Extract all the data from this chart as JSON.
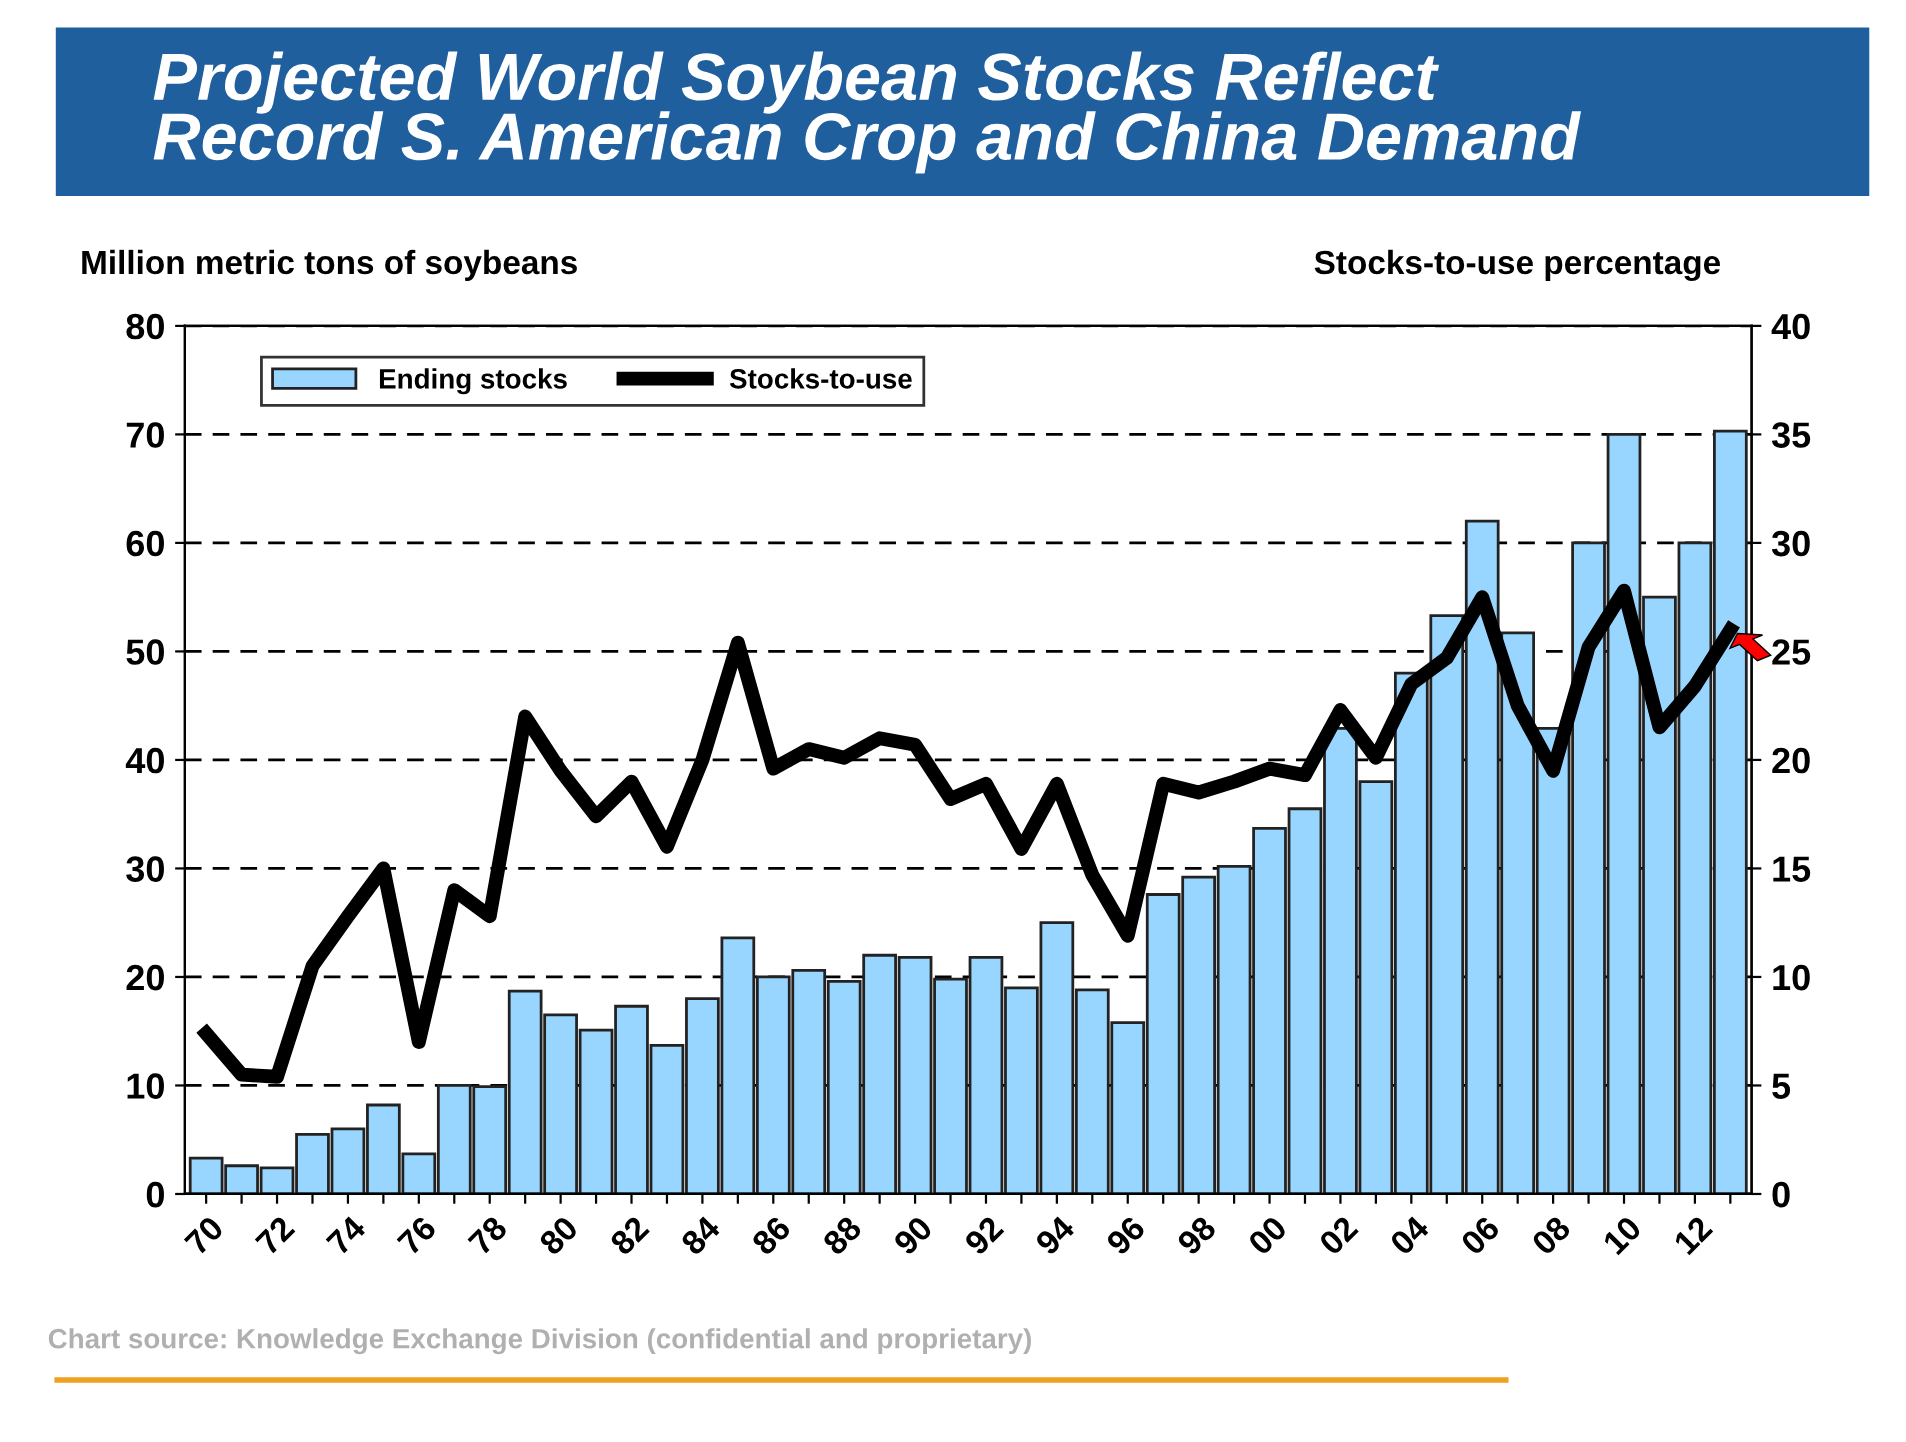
{
  "chart_data": {
    "type": "bar",
    "title": "Projected World Soybean Stocks Reflect\nRecord S. American Crop and China Demand",
    "ylabel": "Million metric tons of soybeans",
    "y2label": "Stocks-to-use percentage",
    "categories": [
      "70",
      null,
      "72",
      null,
      "74",
      null,
      "76",
      null,
      "78",
      null,
      "80",
      null,
      "82",
      null,
      "84",
      null,
      "86",
      null,
      "88",
      null,
      "90",
      null,
      "92",
      null,
      "94",
      null,
      "96",
      null,
      "98",
      null,
      "00",
      null,
      "02",
      null,
      "04",
      null,
      "06",
      null,
      "08",
      null,
      "10",
      null,
      "12",
      null
    ],
    "series": [
      {
        "name": "Ending stocks",
        "color": "#99d6ff",
        "values": [
          3.3,
          2.6,
          2.4,
          5.5,
          6,
          8.2,
          3.7,
          10,
          9.9,
          18.7,
          16.5,
          15.1,
          17.3,
          13.7,
          18,
          23.6,
          20,
          20.6,
          19.6,
          22,
          21.8,
          19.8,
          21.8,
          19,
          25,
          18.8,
          15.8,
          27.6,
          29.2,
          30.2,
          33.7,
          35.5,
          42.9,
          38,
          48,
          53.3,
          62,
          51.7,
          42.9,
          60,
          70,
          55,
          60,
          70.3
        ]
      },
      {
        "name": "Stocks-to-use",
        "type": "line",
        "axis": "y2",
        "color": "#000000",
        "values": [
          7.4,
          5.5,
          5.4,
          10.5,
          12.8,
          15,
          7,
          14,
          12.8,
          22,
          19.5,
          17.4,
          19,
          16,
          20,
          25.4,
          19.6,
          20.5,
          20.1,
          21,
          20.7,
          18.2,
          18.9,
          15.9,
          18.9,
          14.7,
          11.9,
          18.9,
          18.5,
          19,
          19.6,
          19.3,
          22.3,
          20.1,
          23.5,
          24.7,
          27.5,
          22.5,
          19.5,
          25.2,
          27.8,
          21.5,
          23.4,
          26
        ]
      }
    ],
    "ylim": [
      0,
      80
    ],
    "yticks": [
      0,
      10,
      20,
      30,
      40,
      50,
      60,
      70,
      80
    ],
    "y2lim": [
      0,
      40
    ],
    "y2ticks": [
      0,
      5,
      10,
      15,
      20,
      25,
      30,
      35,
      40
    ],
    "grid": "y",
    "legend": "top left",
    "line_style": "solid",
    "marker": "none",
    "annotations": [
      "Chart source: Knowledge Exchange Division (confidential and proprietary)"
    ]
  }
}
